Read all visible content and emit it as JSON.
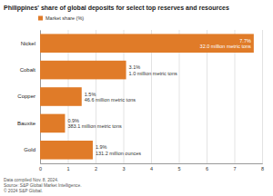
{
  "chart_data": {
    "type": "bar",
    "orientation": "horizontal",
    "title": "Philippines' share of global deposits for select top reserves and resources",
    "categories": [
      "Nickel",
      "Cobalt",
      "Copper",
      "Bauxite",
      "Gold"
    ],
    "series": [
      {
        "name": "Market share (%)",
        "color": "#e07b28",
        "values": [
          7.7,
          3.1,
          1.5,
          0.9,
          1.9
        ],
        "value_labels": [
          "7.7%",
          "3.1%",
          "1.5%",
          "0.9%",
          "1.9%"
        ]
      }
    ],
    "annotations": [
      "32.0 million metric tons",
      "1.0 million metric tons",
      "46.6 million metric tons",
      "383.1 million metric tons",
      "131.2 million ounces"
    ],
    "xlim": [
      0,
      8
    ],
    "xticks": [
      0,
      1,
      2,
      3,
      4,
      5,
      6,
      7,
      8
    ],
    "grid": true,
    "legend": "top-left",
    "data_labels": true,
    "footnotes": [
      "Data compiled Nov. 8, 2024.",
      "Source: S&P Global Market Intelligence.",
      "© 2024 S&P Global."
    ]
  }
}
